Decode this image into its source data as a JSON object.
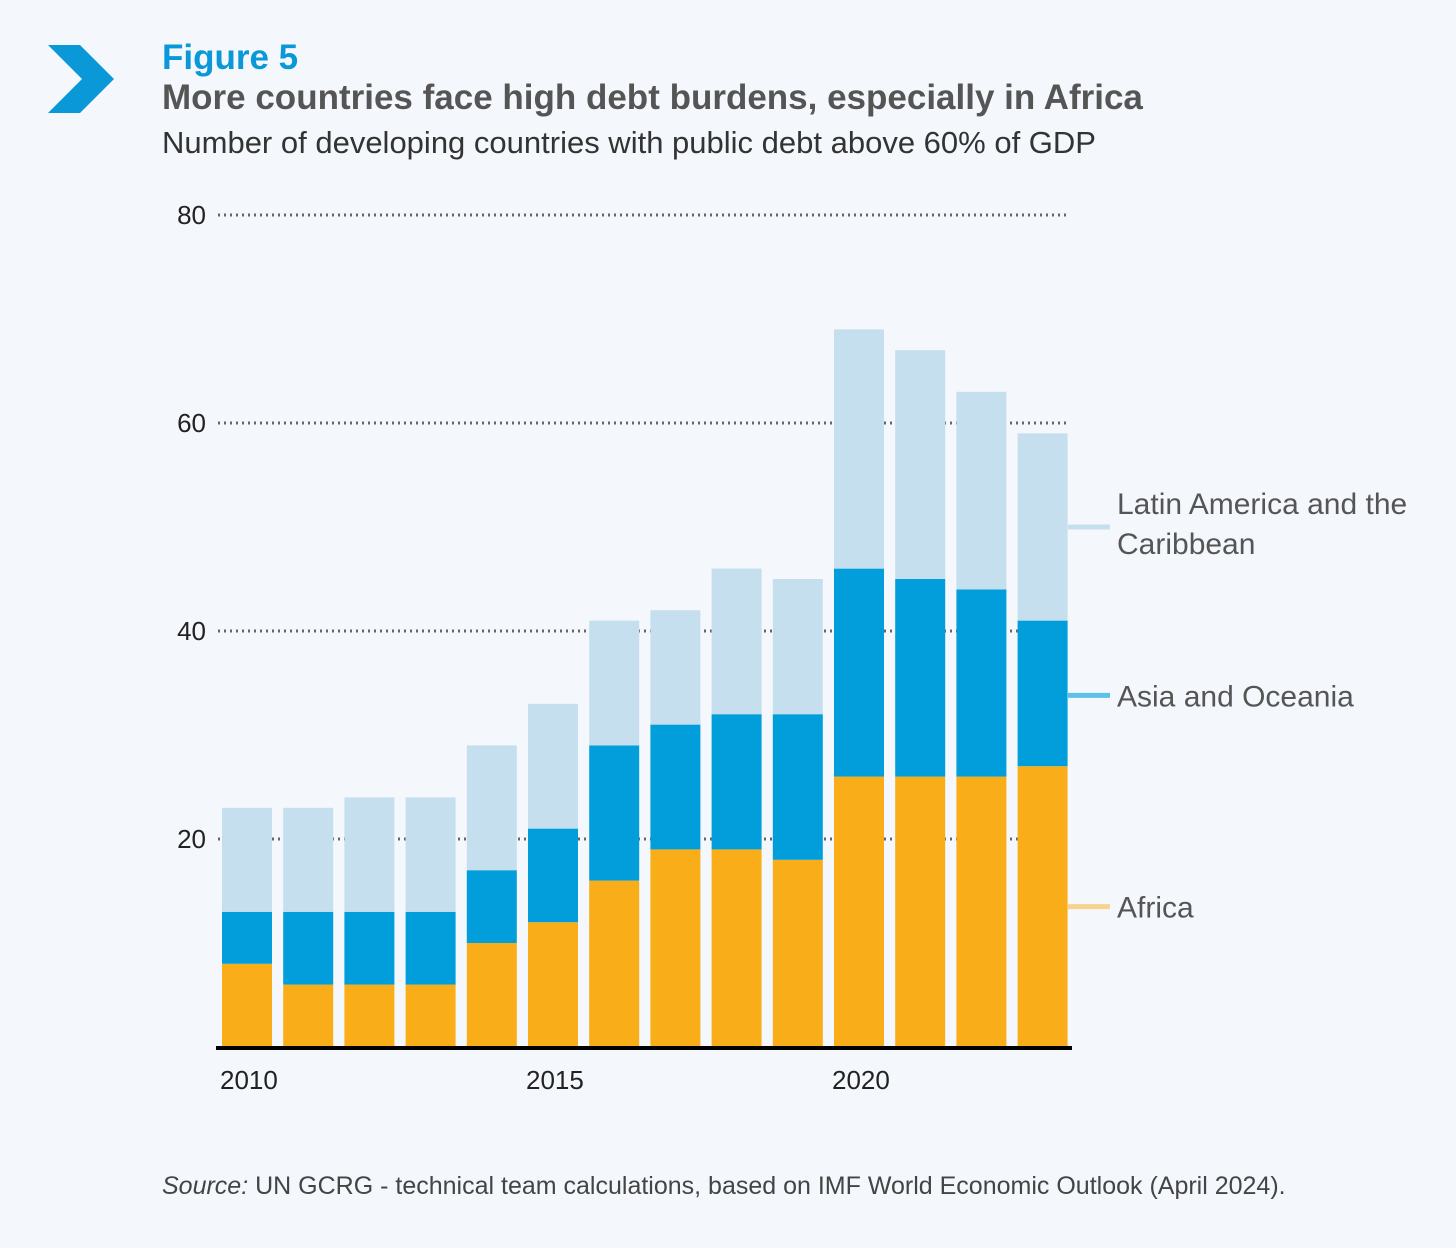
{
  "header": {
    "figure_label": "Figure 5",
    "title": "More countries face high debt burdens, especially in Africa",
    "subtitle": "Number of developing countries with public debt above 60% of GDP"
  },
  "source": {
    "prefix": "Source:",
    "text": " UN GCRG - technical team calculations, based on IMF World Economic Outlook (April 2024)."
  },
  "chart_data": {
    "type": "bar",
    "stacked": true,
    "title": "More countries face high debt burdens, especially in Africa",
    "subtitle": "Number of developing countries with public debt above 60% of GDP",
    "xlabel": "",
    "ylabel": "",
    "ylim": [
      0,
      80
    ],
    "yticks": [
      20,
      40,
      60,
      80
    ],
    "xticks": [
      "2010",
      "2015",
      "2020"
    ],
    "grid": true,
    "legend_placement": "right",
    "categories": [
      "2010",
      "2011",
      "2012",
      "2013",
      "2014",
      "2015",
      "2016",
      "2017",
      "2018",
      "2019",
      "2020",
      "2021",
      "2022",
      "2023"
    ],
    "series": [
      {
        "name": "Africa",
        "color": "#f9ae19",
        "values": [
          8,
          6,
          6,
          6,
          10,
          12,
          16,
          19,
          19,
          18,
          26,
          26,
          26,
          27
        ]
      },
      {
        "name": "Asia and Oceania",
        "color": "#019edb",
        "values": [
          5,
          7,
          7,
          7,
          7,
          9,
          13,
          12,
          13,
          14,
          20,
          19,
          18,
          14
        ]
      },
      {
        "name": "Latin America and the Caribbean",
        "color": "#c6dfee",
        "values": [
          10,
          10,
          11,
          11,
          12,
          12,
          12,
          11,
          14,
          13,
          23,
          22,
          19,
          18
        ]
      }
    ],
    "legend_labels": {
      "latam_line1": "Latin America and the",
      "latam_line2": "Caribbean",
      "asia": "Asia and Oceania",
      "africa": "Africa"
    }
  }
}
